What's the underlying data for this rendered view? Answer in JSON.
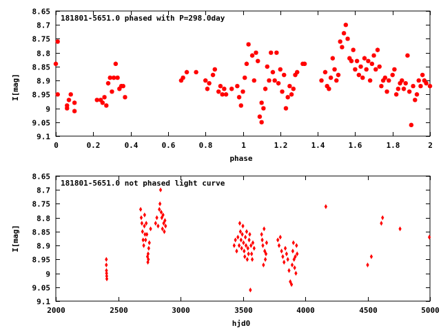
{
  "chart_data": [
    {
      "type": "scatter",
      "title": "181801-5651.0 phased with P=298.0day",
      "xlabel": "phase",
      "ylabel": "I[mag]",
      "xlim": [
        0,
        2
      ],
      "ylim": [
        8.65,
        9.1
      ],
      "y_inverted": true,
      "x_ticks": [
        0,
        0.2,
        0.4,
        0.6,
        0.8,
        1,
        1.2,
        1.4,
        1.6,
        1.8,
        2
      ],
      "x_tick_labels": [
        "0",
        "0.2",
        "0.4",
        "0.6",
        "0.8",
        "1",
        "1.2",
        "1.4",
        "1.6",
        "1.8",
        "2"
      ],
      "y_ticks": [
        8.65,
        8.7,
        8.75,
        8.8,
        8.85,
        8.9,
        8.95,
        9,
        9.05,
        9.1
      ],
      "y_tick_labels": [
        "8.65",
        "8.7",
        "8.75",
        "8.8",
        "8.85",
        "8.9",
        "8.95",
        "9",
        "9.05",
        "9.1"
      ],
      "marker": "star",
      "color": "#ff0000",
      "points": [
        [
          0.0,
          8.84
        ],
        [
          0.01,
          8.76
        ],
        [
          0.01,
          8.95
        ],
        [
          0.06,
          8.99
        ],
        [
          0.06,
          9.0
        ],
        [
          0.07,
          8.97
        ],
        [
          0.08,
          8.95
        ],
        [
          0.1,
          9.01
        ],
        [
          0.1,
          8.98
        ],
        [
          0.22,
          8.97
        ],
        [
          0.24,
          8.97
        ],
        [
          0.25,
          8.98
        ],
        [
          0.26,
          8.96
        ],
        [
          0.27,
          8.99
        ],
        [
          0.28,
          8.91
        ],
        [
          0.29,
          8.89
        ],
        [
          0.3,
          8.94
        ],
        [
          0.31,
          8.89
        ],
        [
          0.32,
          8.84
        ],
        [
          0.33,
          8.89
        ],
        [
          0.34,
          8.93
        ],
        [
          0.35,
          8.92
        ],
        [
          0.36,
          8.92
        ],
        [
          0.37,
          8.96
        ],
        [
          0.67,
          8.9
        ],
        [
          0.68,
          8.89
        ],
        [
          0.7,
          8.87
        ],
        [
          0.75,
          8.87
        ],
        [
          0.8,
          8.9
        ],
        [
          0.81,
          8.93
        ],
        [
          0.82,
          8.91
        ],
        [
          0.84,
          8.88
        ],
        [
          0.85,
          8.86
        ],
        [
          0.87,
          8.94
        ],
        [
          0.88,
          8.92
        ],
        [
          0.89,
          8.95
        ],
        [
          0.9,
          8.93
        ],
        [
          0.91,
          8.95
        ],
        [
          0.94,
          8.93
        ],
        [
          0.97,
          8.92
        ],
        [
          0.98,
          8.96
        ],
        [
          0.99,
          8.99
        ],
        [
          1.0,
          8.94
        ],
        [
          1.01,
          8.89
        ],
        [
          1.02,
          8.84
        ],
        [
          1.03,
          8.77
        ],
        [
          1.05,
          8.81
        ],
        [
          1.06,
          8.9
        ],
        [
          1.07,
          8.8
        ],
        [
          1.08,
          8.83
        ],
        [
          1.09,
          9.03
        ],
        [
          1.1,
          9.05
        ],
        [
          1.1,
          8.98
        ],
        [
          1.11,
          9.0
        ],
        [
          1.12,
          8.93
        ],
        [
          1.13,
          8.85
        ],
        [
          1.14,
          8.9
        ],
        [
          1.15,
          8.8
        ],
        [
          1.16,
          8.87
        ],
        [
          1.17,
          8.9
        ],
        [
          1.18,
          8.8
        ],
        [
          1.19,
          8.91
        ],
        [
          1.2,
          8.86
        ],
        [
          1.21,
          8.94
        ],
        [
          1.22,
          8.88
        ],
        [
          1.23,
          9.0
        ],
        [
          1.24,
          8.96
        ],
        [
          1.25,
          8.92
        ],
        [
          1.26,
          8.95
        ],
        [
          1.27,
          8.93
        ],
        [
          1.28,
          8.88
        ],
        [
          1.29,
          8.87
        ],
        [
          1.32,
          8.84
        ],
        [
          1.33,
          8.84
        ],
        [
          1.42,
          8.9
        ],
        [
          1.44,
          8.87
        ],
        [
          1.45,
          8.92
        ],
        [
          1.46,
          8.93
        ],
        [
          1.47,
          8.89
        ],
        [
          1.48,
          8.82
        ],
        [
          1.49,
          8.86
        ],
        [
          1.5,
          8.9
        ],
        [
          1.51,
          8.88
        ],
        [
          1.52,
          8.76
        ],
        [
          1.53,
          8.78
        ],
        [
          1.54,
          8.73
        ],
        [
          1.55,
          8.7
        ],
        [
          1.56,
          8.75
        ],
        [
          1.57,
          8.82
        ],
        [
          1.58,
          8.83
        ],
        [
          1.59,
          8.79
        ],
        [
          1.6,
          8.86
        ],
        [
          1.61,
          8.83
        ],
        [
          1.62,
          8.88
        ],
        [
          1.63,
          8.85
        ],
        [
          1.64,
          8.89
        ],
        [
          1.65,
          8.82
        ],
        [
          1.66,
          8.86
        ],
        [
          1.67,
          8.83
        ],
        [
          1.68,
          8.9
        ],
        [
          1.69,
          8.84
        ],
        [
          1.7,
          8.81
        ],
        [
          1.71,
          8.86
        ],
        [
          1.72,
          8.79
        ],
        [
          1.73,
          8.85
        ],
        [
          1.74,
          8.92
        ],
        [
          1.75,
          8.9
        ],
        [
          1.76,
          8.89
        ],
        [
          1.77,
          8.94
        ],
        [
          1.78,
          8.9
        ],
        [
          1.8,
          8.88
        ],
        [
          1.81,
          8.86
        ],
        [
          1.82,
          8.95
        ],
        [
          1.83,
          8.93
        ],
        [
          1.84,
          8.91
        ],
        [
          1.85,
          8.9
        ],
        [
          1.86,
          8.93
        ],
        [
          1.87,
          8.91
        ],
        [
          1.88,
          8.81
        ],
        [
          1.89,
          8.94
        ],
        [
          1.9,
          9.06
        ],
        [
          1.91,
          8.92
        ],
        [
          1.92,
          8.97
        ],
        [
          1.93,
          8.95
        ],
        [
          1.94,
          8.9
        ],
        [
          1.95,
          8.92
        ],
        [
          1.96,
          8.88
        ],
        [
          1.97,
          8.9
        ],
        [
          1.98,
          8.91
        ],
        [
          2.0,
          8.92
        ]
      ]
    },
    {
      "type": "scatter",
      "title": "181801-5651.0 not phased light curve",
      "xlabel": "hjd0",
      "ylabel": "I[mag]",
      "xlim": [
        2000,
        5000
      ],
      "ylim": [
        8.65,
        9.1
      ],
      "y_inverted": true,
      "x_ticks": [
        2000,
        2500,
        3000,
        3500,
        4000,
        4500,
        5000
      ],
      "x_tick_labels": [
        "2000",
        "2500",
        "3000",
        "3500",
        "4000",
        "4500",
        "5000"
      ],
      "y_ticks": [
        8.65,
        8.7,
        8.75,
        8.8,
        8.85,
        8.9,
        8.95,
        9,
        9.05,
        9.1
      ],
      "y_tick_labels": [
        "8.65",
        "8.7",
        "8.75",
        "8.8",
        "8.85",
        "8.9",
        "8.95",
        "9",
        "9.05",
        "9.1"
      ],
      "marker": "diamond",
      "color": "#ff0000",
      "points": [
        [
          2405,
          8.95
        ],
        [
          2405,
          8.97
        ],
        [
          2406,
          8.99
        ],
        [
          2407,
          9.0
        ],
        [
          2408,
          9.01
        ],
        [
          2409,
          9.02
        ],
        [
          2680,
          8.77
        ],
        [
          2685,
          8.8
        ],
        [
          2690,
          8.82
        ],
        [
          2695,
          8.85
        ],
        [
          2700,
          8.88
        ],
        [
          2705,
          8.9
        ],
        [
          2710,
          8.83
        ],
        [
          2712,
          8.79
        ],
        [
          2715,
          8.86
        ],
        [
          2720,
          8.88
        ],
        [
          2725,
          8.82
        ],
        [
          2730,
          8.86
        ],
        [
          2735,
          8.94
        ],
        [
          2738,
          8.96
        ],
        [
          2740,
          8.93
        ],
        [
          2742,
          8.95
        ],
        [
          2745,
          8.91
        ],
        [
          2750,
          8.89
        ],
        [
          2760,
          8.84
        ],
        [
          2800,
          8.82
        ],
        [
          2810,
          8.8
        ],
        [
          2820,
          8.83
        ],
        [
          2830,
          8.77
        ],
        [
          2835,
          8.75
        ],
        [
          2840,
          8.7
        ],
        [
          2845,
          8.78
        ],
        [
          2850,
          8.8
        ],
        [
          2855,
          8.84
        ],
        [
          2860,
          8.79
        ],
        [
          2865,
          8.82
        ],
        [
          2870,
          8.85
        ],
        [
          2875,
          8.81
        ],
        [
          2880,
          8.83
        ],
        [
          3430,
          8.9
        ],
        [
          3440,
          8.88
        ],
        [
          3450,
          8.92
        ],
        [
          3460,
          8.87
        ],
        [
          3470,
          8.9
        ],
        [
          3475,
          8.82
        ],
        [
          3480,
          8.85
        ],
        [
          3485,
          8.88
        ],
        [
          3490,
          8.91
        ],
        [
          3495,
          8.86
        ],
        [
          3500,
          8.83
        ],
        [
          3505,
          8.89
        ],
        [
          3510,
          8.92
        ],
        [
          3515,
          8.94
        ],
        [
          3520,
          8.87
        ],
        [
          3525,
          8.9
        ],
        [
          3530,
          8.85
        ],
        [
          3535,
          8.95
        ],
        [
          3540,
          8.91
        ],
        [
          3545,
          8.93
        ],
        [
          3550,
          8.88
        ],
        [
          3555,
          8.86
        ],
        [
          3560,
          9.06
        ],
        [
          3565,
          8.9
        ],
        [
          3570,
          8.93
        ],
        [
          3575,
          8.95
        ],
        [
          3580,
          8.89
        ],
        [
          3590,
          8.91
        ],
        [
          3650,
          8.86
        ],
        [
          3655,
          8.88
        ],
        [
          3660,
          8.9
        ],
        [
          3665,
          8.97
        ],
        [
          3670,
          8.84
        ],
        [
          3675,
          8.92
        ],
        [
          3680,
          8.95
        ],
        [
          3685,
          8.93
        ],
        [
          3690,
          8.89
        ],
        [
          3780,
          8.88
        ],
        [
          3790,
          8.9
        ],
        [
          3800,
          8.87
        ],
        [
          3810,
          8.92
        ],
        [
          3820,
          8.94
        ],
        [
          3830,
          8.96
        ],
        [
          3840,
          8.91
        ],
        [
          3850,
          8.93
        ],
        [
          3860,
          8.95
        ],
        [
          3870,
          8.99
        ],
        [
          3880,
          9.03
        ],
        [
          3890,
          9.04
        ],
        [
          3895,
          8.97
        ],
        [
          3900,
          8.92
        ],
        [
          3905,
          8.89
        ],
        [
          3910,
          8.95
        ],
        [
          3915,
          8.98
        ],
        [
          3920,
          8.94
        ],
        [
          3925,
          9.0
        ],
        [
          3930,
          8.9
        ],
        [
          3935,
          8.93
        ],
        [
          4165,
          8.76
        ],
        [
          4500,
          8.97
        ],
        [
          4530,
          8.94
        ],
        [
          4610,
          8.82
        ],
        [
          4620,
          8.8
        ],
        [
          4760,
          8.84
        ],
        [
          4995,
          8.87
        ]
      ]
    }
  ]
}
